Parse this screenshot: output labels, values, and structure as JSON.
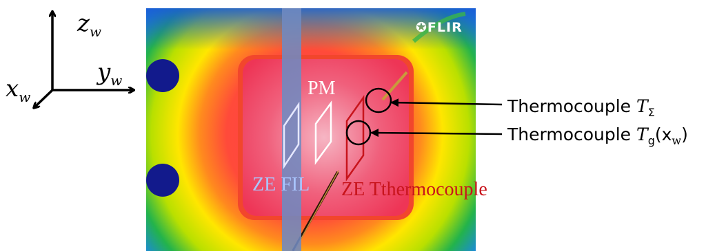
{
  "axes": {
    "z_label": "z",
    "z_sub": "w",
    "y_label": "y",
    "y_sub": "w",
    "x_label": "x",
    "x_sub": "w"
  },
  "thermal_image": {
    "brand": "FLIR",
    "zone_labels": {
      "pm": "PM",
      "ze_fil": "ZE FIL",
      "ze_thermocouple": "ZE Tthermocouple"
    },
    "colors": {
      "hot_core": "#ee3f66",
      "warm": "#f08a2a",
      "mid": "#ffe100",
      "cool": "#1fae3a",
      "cold": "#1466d8",
      "fil_band": "#6f8ac0",
      "ze_tc_color": "#c8141c"
    }
  },
  "callouts": [
    {
      "prefix": "Thermocouple ",
      "var": "T",
      "sub": "Σ",
      "suffix": ""
    },
    {
      "prefix": "Thermocouple ",
      "var": "T",
      "sub": "g",
      "suffix": "(x",
      "suffix_sub": "w",
      "suffix_end": ")"
    }
  ]
}
